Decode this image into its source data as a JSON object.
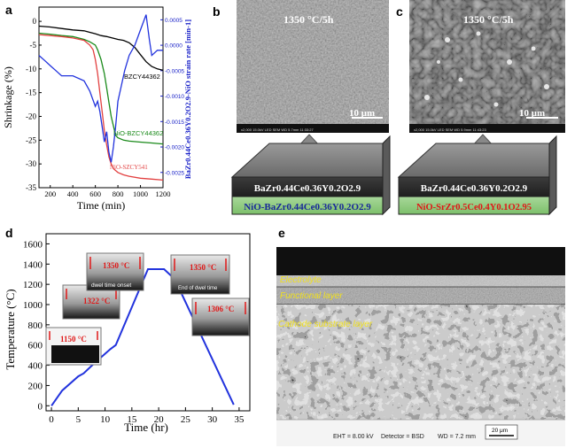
{
  "panels": {
    "a": {
      "letter": "a",
      "ylabel": "Shrinkage (%)",
      "y2label": "BaZr0.44Ce0.36Y0.2O2.9-NiO strain rate [min-1]",
      "xlabel": "Time (min)",
      "xticks": [
        "200",
        "400",
        "600",
        "800",
        "1000",
        "1200"
      ],
      "yticks": [
        "0",
        "-5",
        "-10",
        "-15",
        "-20",
        "-25",
        "-30",
        "-35"
      ],
      "y2ticks": [
        "0.0005",
        "0.0000",
        "-0.0005",
        "-0.0010",
        "-0.0015",
        "-0.0020",
        "-0.0025"
      ],
      "label_bzcy": "BZCY44362",
      "label_nio_bzcy": "NiO-BZCY44362",
      "label_nio_szcy": "NiO-SZCY541"
    },
    "b": {
      "letter": "b",
      "condition": "1350 °C/5h",
      "scalebar": "10 μm",
      "layer_top": "BaZr0.44Ce0.36Y0.2O2.9",
      "layer_bottom": "NiO-BaZr0.44Ce0.36Y0.2O2.9"
    },
    "c": {
      "letter": "c",
      "condition": "1350 °C/5h",
      "scalebar": "10 μm",
      "layer_top": "BaZr0.44Ce0.36Y0.2O2.9",
      "layer_bottom": "NiO-SrZr0.5Ce0.4Y0.1O2.95"
    },
    "d": {
      "letter": "d",
      "ylabel": "Temperature (°C)",
      "xlabel": "Time (hr)",
      "xticks": [
        "0",
        "5",
        "10",
        "15",
        "20",
        "25",
        "30",
        "35"
      ],
      "yticks": [
        "0",
        "200",
        "400",
        "600",
        "800",
        "1000",
        "1200",
        "1400",
        "1600"
      ],
      "insets": {
        "t1150": "1150 °C",
        "t1322": "1322 °C",
        "t1350a": "1350 °C",
        "t1350b": "1350 °C",
        "t1306": "1306 °C",
        "onset": "dwel time onset",
        "end": "End of dwel time"
      }
    },
    "e": {
      "letter": "e",
      "layer_electrolyte": "Electrolyte",
      "layer_functional": "Functional layer",
      "layer_substrate": "Cathode substrate layer",
      "eht": "EHT = 8.00 kV",
      "detector": "Detector = BSD",
      "wd": "WD = 7.2 mm",
      "scalebar": "20 μm"
    }
  },
  "chart_data": [
    {
      "type": "line",
      "panel": "a",
      "xlabel": "Time (min)",
      "ylabel": "Shrinkage (%)",
      "xlim": [
        100,
        1200
      ],
      "ylim": [
        -35,
        3
      ],
      "series": [
        {
          "name": "BZCY44362",
          "color": "#000000",
          "x": [
            100,
            200,
            300,
            400,
            500,
            550,
            600,
            650,
            700,
            750,
            800,
            850,
            900,
            950,
            1000,
            1050,
            1100,
            1150,
            1200
          ],
          "y": [
            -1,
            -1.2,
            -1.5,
            -1.8,
            -2,
            -2.3,
            -2.6,
            -3,
            -3.2,
            -3.5,
            -3.8,
            -4,
            -4.5,
            -5.5,
            -7,
            -8.5,
            -9.5,
            -10,
            -10.3
          ]
        },
        {
          "name": "NiO-BZCY44362",
          "color": "#1a8a1a",
          "x": [
            100,
            200,
            300,
            400,
            500,
            550,
            600,
            620,
            650,
            680,
            700,
            720,
            740,
            760,
            780,
            800,
            850,
            900,
            1000,
            1100,
            1200
          ],
          "y": [
            -2.5,
            -2.7,
            -3,
            -3.2,
            -3.8,
            -4.3,
            -5,
            -6,
            -8,
            -11,
            -14,
            -17,
            -20,
            -22,
            -24,
            -24.5,
            -25,
            -25.2,
            -25.4,
            -25.6,
            -25.8
          ]
        },
        {
          "name": "NiO-SZCY541",
          "color": "#e24040",
          "x": [
            100,
            200,
            300,
            400,
            500,
            550,
            580,
            600,
            620,
            640,
            660,
            680,
            700,
            720,
            740,
            760,
            800,
            850,
            900,
            1000,
            1100,
            1200
          ],
          "y": [
            -2.8,
            -3,
            -3.2,
            -3.5,
            -4,
            -5,
            -6,
            -8,
            -11,
            -15,
            -19,
            -23,
            -26,
            -28.5,
            -30,
            -31,
            -31.8,
            -32.3,
            -32.6,
            -33,
            -33.2,
            -33.4
          ]
        },
        {
          "name": "BaZr0.44Ce0.36Y0.2O2.9-NiO strain rate",
          "color": "#2233dd",
          "axis": "right",
          "x": [
            100,
            150,
            200,
            250,
            300,
            400,
            500,
            550,
            600,
            620,
            640,
            660,
            680,
            700,
            720,
            740,
            760,
            780,
            800,
            830,
            860,
            900,
            950,
            1000,
            1050,
            1080,
            1100,
            1150,
            1200
          ],
          "y": [
            -0.0002,
            -0.0003,
            -0.0004,
            -0.0005,
            -0.0006,
            -0.0006,
            -0.0007,
            -0.0009,
            -0.0012,
            -0.0011,
            -0.0013,
            -0.0016,
            -0.0019,
            -0.0017,
            -0.0021,
            -0.0023,
            -0.002,
            -0.0016,
            -0.0011,
            -0.0008,
            -0.0005,
            -0.0002,
            0.0,
            0.0003,
            0.0006,
            0.0001,
            -0.0002,
            -0.0001,
            -0.0001
          ]
        }
      ]
    },
    {
      "type": "line",
      "panel": "d",
      "xlabel": "Time (hr)",
      "ylabel": "Temperature (°C)",
      "xlim": [
        -1,
        37
      ],
      "ylim": [
        -50,
        1700
      ],
      "series": [
        {
          "name": "Temperature",
          "color": "#2233dd",
          "x": [
            0,
            2,
            5,
            6,
            8,
            11,
            12,
            18,
            21,
            23,
            34
          ],
          "y": [
            0,
            150,
            290,
            320,
            420,
            560,
            600,
            1350,
            1350,
            1250,
            10
          ]
        }
      ]
    }
  ]
}
